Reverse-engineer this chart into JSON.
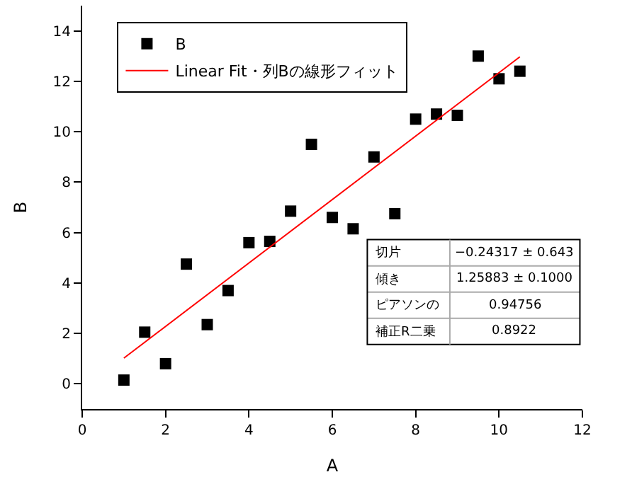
{
  "chart_data": {
    "type": "scatter",
    "xlabel": "A",
    "ylabel": "B",
    "xlim": [
      0,
      12
    ],
    "xticks": [
      0,
      2,
      4,
      6,
      8,
      10,
      12
    ],
    "ylim": [
      -1,
      15
    ],
    "yticks": [
      0,
      2,
      4,
      6,
      8,
      10,
      12,
      14
    ],
    "legend": "top left",
    "series": [
      {
        "name": "B",
        "marker": "square",
        "color": "#000000",
        "x": [
          1,
          1.5,
          2,
          2.5,
          3,
          3.5,
          4,
          4.5,
          5,
          5.5,
          6,
          6.5,
          7,
          7.5,
          8,
          8.5,
          9,
          9.5,
          10,
          10.5
        ],
        "values": [
          0.15,
          2.05,
          0.8,
          4.75,
          2.35,
          3.7,
          5.6,
          5.65,
          6.85,
          9.5,
          6.6,
          6.15,
          9.0,
          6.75,
          10.5,
          10.7,
          10.65,
          13.0,
          12.1,
          12.4
        ]
      },
      {
        "name": "Linear Fit・列Bの線形フィット",
        "type": "line",
        "color": "#ff0000",
        "line_style": "solid",
        "x": [
          1,
          10.5
        ],
        "values": [
          1.02,
          12.97
        ]
      }
    ],
    "annotations": [
      "切片",
      "−0.24317 ± 0.643",
      "傾き",
      "1.25883 ± 0.1000",
      "ピアソンの",
      "0.94756",
      "補正R二乗",
      "0.8922"
    ]
  }
}
